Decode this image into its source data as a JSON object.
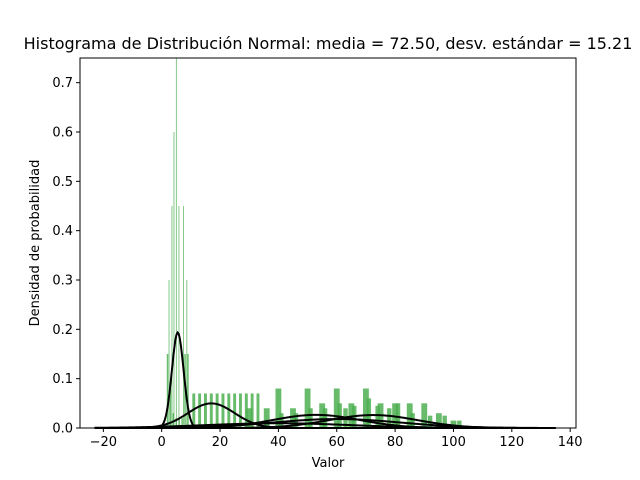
{
  "chart_data": {
    "type": "histogram",
    "title": "Histograma de Distribución Normal: media = 72.50, desv. estándar = 15.21",
    "xlabel": "Valor",
    "ylabel": "Densidad de probabilidad",
    "xlim": [
      -28,
      142
    ],
    "ylim": [
      0,
      0.75
    ],
    "xticks": [
      -20,
      0,
      20,
      40,
      60,
      80,
      100,
      120,
      140
    ],
    "yticks": [
      0.0,
      0.1,
      0.2,
      0.3,
      0.4,
      0.5,
      0.6,
      0.7
    ],
    "grid": false,
    "colors": {
      "bars": "#4caf50",
      "curves": "#000000"
    },
    "bar_groups": [
      {
        "width": 0.25,
        "x": [
          2.5,
          3.5,
          4.2,
          5.0,
          5.9,
          7.5,
          8.6
        ],
        "values": [
          0.3,
          0.45,
          0.6,
          0.75,
          0.45,
          0.45,
          0.3
        ]
      },
      {
        "width": 0.5,
        "x": [
          2,
          3,
          4,
          5,
          6,
          7,
          8,
          9
        ],
        "values": [
          0.15,
          0.08,
          0.03,
          0.02,
          0.02,
          0.02,
          0.15,
          0.15
        ]
      },
      {
        "width": 1.0,
        "x": [
          11,
          13,
          15,
          17,
          19,
          21,
          23,
          25,
          27,
          29,
          31,
          33
        ],
        "values": [
          0.07,
          0.07,
          0.07,
          0.07,
          0.07,
          0.07,
          0.07,
          0.07,
          0.07,
          0.07,
          0.07,
          0.07
        ]
      },
      {
        "width": 2.0,
        "x": [
          30,
          36,
          40,
          45,
          50,
          55,
          60,
          65,
          70,
          75,
          80,
          85,
          90,
          95,
          100
        ],
        "values": [
          0.04,
          0.04,
          0.08,
          0.04,
          0.08,
          0.05,
          0.08,
          0.05,
          0.08,
          0.05,
          0.05,
          0.05,
          0.05,
          0.03,
          0.015
        ]
      },
      {
        "width": 1.5,
        "x": [
          41,
          46,
          51,
          56,
          61,
          63,
          66,
          71,
          74,
          78,
          81,
          86,
          92,
          97,
          102
        ],
        "values": [
          0.03,
          0.03,
          0.04,
          0.04,
          0.05,
          0.04,
          0.045,
          0.06,
          0.045,
          0.04,
          0.05,
          0.03,
          0.025,
          0.025,
          0.015
        ]
      }
    ],
    "series": [
      {
        "mean": 5.5,
        "sd": 2.0,
        "weight": 0.97
      },
      {
        "mean": 17,
        "sd": 8,
        "weight": 1.0
      },
      {
        "mean": 53,
        "sd": 15,
        "weight": 1.0
      },
      {
        "mean": 72.5,
        "sd": 15.21,
        "weight": 1.0
      },
      {
        "mean": 60,
        "sd": 22,
        "weight": 1.0
      },
      {
        "mean": 40,
        "sd": 25,
        "weight": 0.6
      }
    ],
    "curve_x_range": [
      -23,
      135
    ]
  }
}
